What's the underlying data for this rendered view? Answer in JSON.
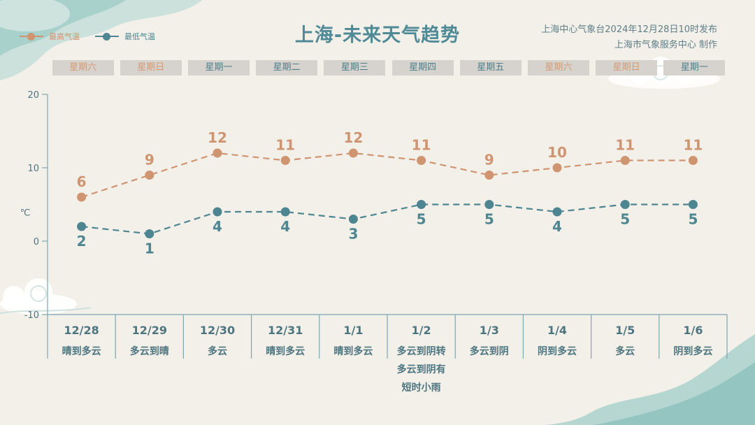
{
  "header": {
    "title": "上海-未来天气趋势",
    "source_line1": "上海中心气象台2024年12月28日10时发布",
    "source_line2": "上海市气象服务中心 制作"
  },
  "legend": {
    "items": [
      {
        "label": "最高气温",
        "color": "#cf9470"
      },
      {
        "label": "最低气温",
        "color": "#4d8590"
      }
    ]
  },
  "weekdays": [
    {
      "label": "星期六",
      "weekend": true
    },
    {
      "label": "星期日",
      "weekend": true
    },
    {
      "label": "星期一",
      "weekend": false
    },
    {
      "label": "星期二",
      "weekend": false
    },
    {
      "label": "星期三",
      "weekend": false
    },
    {
      "label": "星期四",
      "weekend": false
    },
    {
      "label": "星期五",
      "weekend": false
    },
    {
      "label": "星期六",
      "weekend": true
    },
    {
      "label": "星期日",
      "weekend": true
    },
    {
      "label": "星期一",
      "weekend": false
    }
  ],
  "colors": {
    "weekend_text": "#d49a74",
    "weekday_text": "#4f7f8a",
    "axis": "#7aa7b0",
    "table_text": "#4d7580"
  },
  "chart_data": {
    "type": "line",
    "title": "上海-未来天气趋势",
    "ylabel": "℃",
    "ylim": [
      -10,
      20
    ],
    "yticks": [
      -10,
      0,
      10,
      20
    ],
    "grid": false,
    "legend_position": "top-left",
    "categories": [
      "12/28",
      "12/29",
      "12/30",
      "12/31",
      "1/1",
      "1/2",
      "1/3",
      "1/4",
      "1/5",
      "1/6"
    ],
    "weather": [
      [
        "晴到多云"
      ],
      [
        "多云到晴"
      ],
      [
        "多云"
      ],
      [
        "晴到多云"
      ],
      [
        "晴到多云"
      ],
      [
        "多云到阴转",
        "多云到阴有",
        "短时小雨"
      ],
      [
        "多云到阴"
      ],
      [
        "阴到多云"
      ],
      [
        "多云"
      ],
      [
        "阴到多云"
      ]
    ],
    "series": [
      {
        "name": "最高气温",
        "color": "#cf9470",
        "values": [
          6,
          9,
          12,
          11,
          12,
          11,
          9,
          10,
          11,
          11
        ]
      },
      {
        "name": "最低气温",
        "color": "#4d8590",
        "values": [
          2,
          1,
          4,
          4,
          3,
          5,
          5,
          4,
          5,
          5
        ]
      }
    ]
  }
}
